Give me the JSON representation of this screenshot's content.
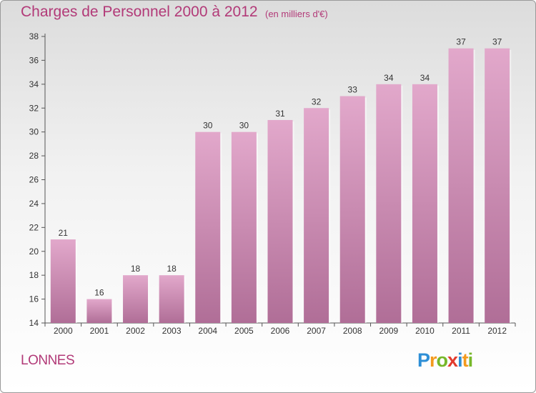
{
  "header": {
    "title": "Charges de Personnel 2000 à 2012",
    "subtitle": "(en milliers d'€)"
  },
  "commune": "LONNES",
  "logo": {
    "text": "Proxiti",
    "letters": [
      {
        "ch": "P",
        "color": "#2e8fd6"
      },
      {
        "ch": "r",
        "color": "#f39a1e"
      },
      {
        "ch": "o",
        "color": "#77b82a"
      },
      {
        "ch": "x",
        "color": "#e23b2e"
      },
      {
        "ch": "i",
        "color": "#2e8fd6"
      },
      {
        "ch": "t",
        "color": "#f39a1e"
      },
      {
        "ch": "i",
        "color": "#77b82a"
      }
    ]
  },
  "chart_data": {
    "type": "bar",
    "title": "Charges de Personnel 2000 à 2012",
    "subtitle": "(en milliers d'€)",
    "categories": [
      "2000",
      "2001",
      "2002",
      "2003",
      "2004",
      "2005",
      "2006",
      "2007",
      "2008",
      "2009",
      "2010",
      "2011",
      "2012"
    ],
    "values": [
      21,
      16,
      18,
      18,
      30,
      30,
      31,
      32,
      33,
      34,
      34,
      37,
      37
    ],
    "ylim": [
      14,
      38
    ],
    "yticks": [
      14,
      16,
      18,
      20,
      22,
      24,
      26,
      28,
      30,
      32,
      34,
      36,
      38
    ],
    "grid": false,
    "legend": "none",
    "bar_color_top": "#e2a8cb",
    "bar_color_bottom": "#b06e97",
    "label_color": "#333333"
  }
}
